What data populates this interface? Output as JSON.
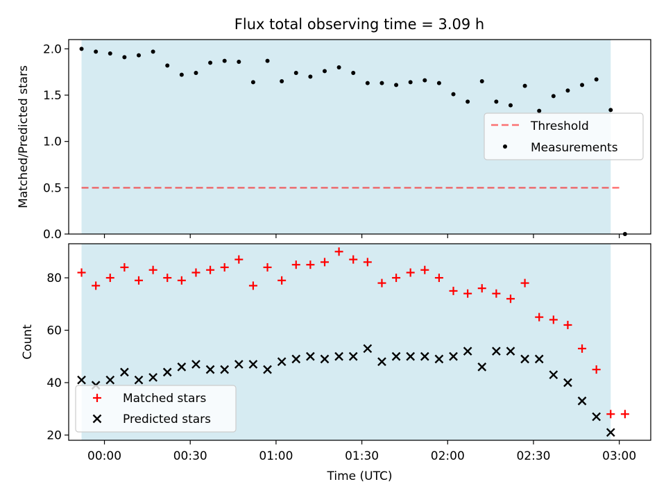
{
  "figure": {
    "title": "Flux total observing time = 3.09 h"
  },
  "colors": {
    "shade": "#add8e6",
    "threshold": "#ff0000",
    "matched": "#ff0000",
    "predicted": "#000000",
    "measurement": "#000000"
  },
  "chart_data": [
    {
      "type": "scatter",
      "panel": "top",
      "ylabel": "Matched/Predicted stars",
      "xlabel": "",
      "xlim": [
        "23:47:30",
        "03:11:00"
      ],
      "ylim": [
        0,
        2.1
      ],
      "yticks": [
        "0.0",
        "0.5",
        "1.0",
        "1.5",
        "2.0"
      ],
      "shaded_interval": [
        "23:52",
        "02:57"
      ],
      "legend_position": "center-right",
      "legend": [
        "Threshold",
        "Measurements"
      ],
      "threshold": {
        "name": "Threshold",
        "y": 0.5,
        "x": [
          "23:52",
          "03:01"
        ],
        "style": "dashed"
      },
      "series": [
        {
          "name": "Measurements",
          "x": [
            "23:52",
            "23:57",
            "00:02",
            "00:07",
            "00:12",
            "00:17",
            "00:22",
            "00:27",
            "00:32",
            "00:37",
            "00:42",
            "00:47",
            "00:52",
            "00:57",
            "01:02",
            "01:07",
            "01:12",
            "01:17",
            "01:22",
            "01:27",
            "01:32",
            "01:37",
            "01:42",
            "01:47",
            "01:52",
            "01:57",
            "02:02",
            "02:07",
            "02:12",
            "02:17",
            "02:22",
            "02:27",
            "02:32",
            "02:37",
            "02:42",
            "02:47",
            "02:52",
            "02:57",
            "03:02"
          ],
          "y": [
            2.0,
            1.97,
            1.95,
            1.91,
            1.93,
            1.97,
            1.82,
            1.72,
            1.74,
            1.85,
            1.87,
            1.86,
            1.64,
            1.87,
            1.65,
            1.74,
            1.7,
            1.76,
            1.8,
            1.74,
            1.63,
            1.63,
            1.61,
            1.64,
            1.66,
            1.63,
            1.51,
            1.43,
            1.65,
            1.43,
            1.39,
            1.6,
            1.33,
            1.49,
            1.55,
            1.61,
            1.67,
            1.34,
            0.0
          ]
        }
      ]
    },
    {
      "type": "scatter",
      "panel": "bottom",
      "ylabel": "Count",
      "xlabel": "Time (UTC)",
      "xlim": [
        "23:47:30",
        "03:11:00"
      ],
      "ylim": [
        18,
        93
      ],
      "yticks": [
        "20",
        "40",
        "60",
        "80"
      ],
      "xticks": [
        "00:00",
        "00:30",
        "01:00",
        "01:30",
        "02:00",
        "02:30",
        "03:00"
      ],
      "shaded_interval": [
        "23:52",
        "02:57"
      ],
      "legend_position": "lower-left",
      "legend": [
        "Matched stars",
        "Predicted stars"
      ],
      "series": [
        {
          "name": "Matched stars",
          "marker": "+",
          "x": [
            "23:52",
            "23:57",
            "00:02",
            "00:07",
            "00:12",
            "00:17",
            "00:22",
            "00:27",
            "00:32",
            "00:37",
            "00:42",
            "00:47",
            "00:52",
            "00:57",
            "01:02",
            "01:07",
            "01:12",
            "01:17",
            "01:22",
            "01:27",
            "01:32",
            "01:37",
            "01:42",
            "01:47",
            "01:52",
            "01:57",
            "02:02",
            "02:07",
            "02:12",
            "02:17",
            "02:22",
            "02:27",
            "02:32",
            "02:37",
            "02:42",
            "02:47",
            "02:52",
            "02:57",
            "03:02"
          ],
          "y": [
            82,
            77,
            80,
            84,
            79,
            83,
            80,
            79,
            82,
            83,
            84,
            87,
            77,
            84,
            79,
            85,
            85,
            86,
            90,
            87,
            86,
            78,
            80,
            82,
            83,
            80,
            75,
            74,
            76,
            74,
            72,
            78,
            65,
            64,
            62,
            53,
            45,
            28,
            28
          ]
        },
        {
          "name": "Predicted stars",
          "marker": "x",
          "x": [
            "23:52",
            "23:57",
            "00:02",
            "00:07",
            "00:12",
            "00:17",
            "00:22",
            "00:27",
            "00:32",
            "00:37",
            "00:42",
            "00:47",
            "00:52",
            "00:57",
            "01:02",
            "01:07",
            "01:12",
            "01:17",
            "01:22",
            "01:27",
            "01:32",
            "01:37",
            "01:42",
            "01:47",
            "01:52",
            "01:57",
            "02:02",
            "02:07",
            "02:12",
            "02:17",
            "02:22",
            "02:27",
            "02:32",
            "02:37",
            "02:42",
            "02:47",
            "02:52",
            "02:57"
          ],
          "y": [
            41,
            39,
            41,
            44,
            41,
            42,
            44,
            46,
            47,
            45,
            45,
            47,
            47,
            45,
            48,
            49,
            50,
            49,
            50,
            50,
            53,
            48,
            50,
            50,
            50,
            49,
            50,
            52,
            46,
            52,
            52,
            49,
            49,
            43,
            40,
            33,
            27,
            21
          ]
        }
      ]
    }
  ]
}
